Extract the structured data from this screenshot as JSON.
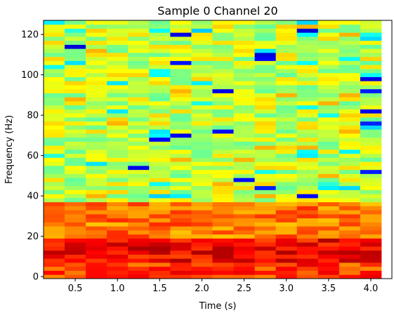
{
  "chart_data": {
    "type": "heatmap",
    "title": "Sample 0 Channel 20",
    "xlabel": "Time (s)",
    "ylabel": "Frequency (Hz)",
    "colormap": "jet",
    "grid": false,
    "xlim": [
      0.125,
      4.25
    ],
    "ylim": [
      -1,
      127
    ],
    "x_ticks": [
      0.5,
      1.0,
      1.5,
      2.0,
      2.5,
      3.0,
      3.5,
      4.0
    ],
    "x_tick_labels": [
      "0.5",
      "1.0",
      "1.5",
      "2.0",
      "2.5",
      "3.0",
      "3.5",
      "4.0"
    ],
    "y_ticks": [
      0,
      20,
      40,
      60,
      80,
      100,
      120
    ],
    "y_tick_labels": [
      "0",
      "20",
      "40",
      "60",
      "80",
      "100",
      "120"
    ],
    "time_bins": [
      0.25,
      0.5,
      0.75,
      1.0,
      1.25,
      1.5,
      1.75,
      2.0,
      2.25,
      2.5,
      2.75,
      3.0,
      3.25,
      3.5,
      3.75,
      4.0
    ],
    "freq_bin_hz": 2,
    "freq_bins_count": 64,
    "value_range": [
      0,
      1
    ],
    "description": "Spectrogram intensity (normalized 0-1, jet colormap). High (orange/red) below ~38 Hz, darkest red around 8-18 Hz; mostly yellow-green above 40 Hz with scattered cyan/blue lows."
  }
}
